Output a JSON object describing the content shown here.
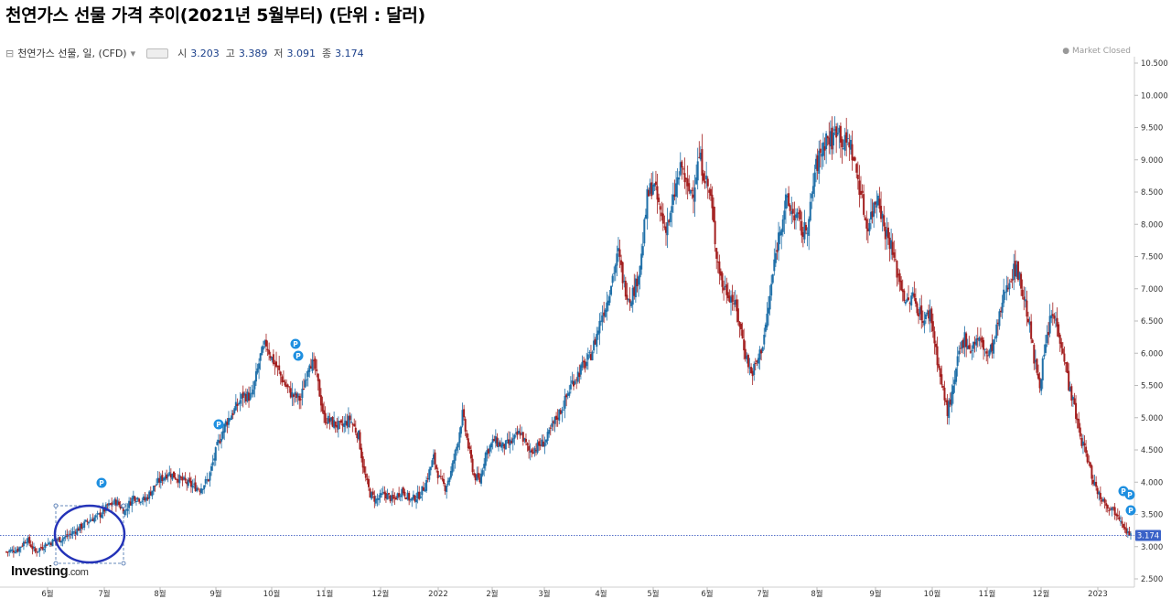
{
  "title": "천연가스 선물 가격 추이(2021년 5월부터) (단위 : 달러)",
  "legend": {
    "collapse_symbol": "⊟",
    "instrument": "천연가스 선물, 일, (CFD)",
    "caret": "▾",
    "open_label": "시",
    "open": "3.203",
    "high_label": "고",
    "high": "3.389",
    "low_label": "저",
    "low": "3.091",
    "close_label": "종",
    "close": "3.174"
  },
  "market_status": "● Market Closed",
  "logo": {
    "name": "Investing",
    "suffix": ".com"
  },
  "colors": {
    "up": "#1f6fa8",
    "down": "#a31f1f",
    "price_line": "#5570c8",
    "price_tag": "#3a62c8",
    "marker": "#1e8fe0",
    "circle": "#2433b8"
  },
  "chart_data": {
    "type": "candlestick",
    "title": "천연가스 선물 가격 추이(2021년 5월부터) (단위 : 달러)",
    "xlabel": "",
    "ylabel": "",
    "ylim": [
      2.4,
      10.6
    ],
    "yticks": [
      "10.500",
      "10.000",
      "9.500",
      "9.000",
      "8.500",
      "8.000",
      "7.500",
      "7.000",
      "6.500",
      "6.000",
      "5.500",
      "5.000",
      "4.500",
      "4.000",
      "3.500",
      "3.000",
      "2.500"
    ],
    "month_ticks": [
      "6월",
      "7월",
      "8월",
      "9월",
      "10월",
      "11월",
      "12월",
      "2022",
      "2월",
      "3월",
      "4월",
      "5월",
      "6월",
      "7월",
      "8월",
      "9월",
      "10월",
      "11월",
      "12월",
      "2023"
    ],
    "current_price": "3.174",
    "grid": false,
    "path_keypoints": [
      [
        0,
        2.92
      ],
      [
        8,
        2.96
      ],
      [
        14,
        3.12
      ],
      [
        20,
        2.92
      ],
      [
        28,
        3.05
      ],
      [
        35,
        3.1
      ],
      [
        42,
        3.16
      ],
      [
        50,
        3.28
      ],
      [
        58,
        3.42
      ],
      [
        64,
        3.48
      ],
      [
        70,
        3.62
      ],
      [
        76,
        3.7
      ],
      [
        82,
        3.55
      ],
      [
        88,
        3.78
      ],
      [
        96,
        3.72
      ],
      [
        104,
        3.98
      ],
      [
        112,
        4.15
      ],
      [
        120,
        4.05
      ],
      [
        128,
        3.95
      ],
      [
        134,
        3.9
      ],
      [
        140,
        4.05
      ],
      [
        146,
        4.55
      ],
      [
        152,
        4.92
      ],
      [
        158,
        5.12
      ],
      [
        164,
        5.35
      ],
      [
        170,
        5.32
      ],
      [
        176,
        5.95
      ],
      [
        180,
        6.15
      ],
      [
        184,
        5.92
      ],
      [
        188,
        5.75
      ],
      [
        192,
        5.55
      ],
      [
        198,
        5.35
      ],
      [
        204,
        5.28
      ],
      [
        210,
        5.9
      ],
      [
        214,
        5.75
      ],
      [
        220,
        5.0
      ],
      [
        226,
        4.92
      ],
      [
        232,
        4.85
      ],
      [
        238,
        4.98
      ],
      [
        244,
        4.72
      ],
      [
        248,
        4.12
      ],
      [
        252,
        3.82
      ],
      [
        256,
        3.72
      ],
      [
        262,
        3.82
      ],
      [
        268,
        3.72
      ],
      [
        274,
        3.88
      ],
      [
        280,
        3.72
      ],
      [
        286,
        3.8
      ],
      [
        290,
        3.95
      ],
      [
        296,
        4.38
      ],
      [
        300,
        4.05
      ],
      [
        304,
        3.92
      ],
      [
        308,
        4.15
      ],
      [
        312,
        4.55
      ],
      [
        316,
        5.05
      ],
      [
        320,
        4.55
      ],
      [
        324,
        4.1
      ],
      [
        328,
        4.02
      ],
      [
        332,
        4.45
      ],
      [
        338,
        4.65
      ],
      [
        344,
        4.55
      ],
      [
        350,
        4.62
      ],
      [
        356,
        4.78
      ],
      [
        362,
        4.48
      ],
      [
        368,
        4.55
      ],
      [
        374,
        4.65
      ],
      [
        380,
        4.95
      ],
      [
        386,
        5.2
      ],
      [
        392,
        5.55
      ],
      [
        398,
        5.75
      ],
      [
        404,
        5.92
      ],
      [
        408,
        6.2
      ],
      [
        412,
        6.55
      ],
      [
        416,
        6.8
      ],
      [
        420,
        7.2
      ],
      [
        424,
        7.55
      ],
      [
        428,
        7.05
      ],
      [
        432,
        6.85
      ],
      [
        436,
        7.05
      ],
      [
        440,
        7.5
      ],
      [
        444,
        8.4
      ],
      [
        448,
        8.65
      ],
      [
        452,
        8.28
      ],
      [
        456,
        7.95
      ],
      [
        460,
        8.1
      ],
      [
        464,
        8.6
      ],
      [
        468,
        8.9
      ],
      [
        472,
        8.5
      ],
      [
        476,
        8.55
      ],
      [
        480,
        9.05
      ],
      [
        484,
        8.75
      ],
      [
        488,
        8.4
      ],
      [
        492,
        7.55
      ],
      [
        496,
        7.05
      ],
      [
        500,
        6.95
      ],
      [
        504,
        6.8
      ],
      [
        508,
        6.45
      ],
      [
        512,
        6.0
      ],
      [
        516,
        5.68
      ],
      [
        520,
        5.85
      ],
      [
        524,
        6.15
      ],
      [
        528,
        6.7
      ],
      [
        532,
        7.4
      ],
      [
        536,
        7.95
      ],
      [
        540,
        8.35
      ],
      [
        544,
        8.2
      ],
      [
        548,
        8.1
      ],
      [
        552,
        7.85
      ],
      [
        556,
        8.05
      ],
      [
        560,
        8.8
      ],
      [
        564,
        9.1
      ],
      [
        568,
        9.35
      ],
      [
        572,
        9.3
      ],
      [
        576,
        9.55
      ],
      [
        580,
        9.22
      ],
      [
        584,
        9.3
      ],
      [
        588,
        8.9
      ],
      [
        592,
        8.5
      ],
      [
        596,
        7.95
      ],
      [
        600,
        8.2
      ],
      [
        604,
        8.5
      ],
      [
        608,
        7.95
      ],
      [
        612,
        7.75
      ],
      [
        616,
        7.35
      ],
      [
        620,
        7.05
      ],
      [
        624,
        6.75
      ],
      [
        628,
        6.88
      ],
      [
        632,
        6.68
      ],
      [
        636,
        6.5
      ],
      [
        640,
        6.65
      ],
      [
        644,
        6.05
      ],
      [
        648,
        5.5
      ],
      [
        652,
        5.1
      ],
      [
        656,
        5.42
      ],
      [
        660,
        6.0
      ],
      [
        664,
        6.25
      ],
      [
        668,
        6.05
      ],
      [
        672,
        6.22
      ],
      [
        676,
        6.15
      ],
      [
        680,
        5.95
      ],
      [
        684,
        6.15
      ],
      [
        688,
        6.55
      ],
      [
        692,
        7.0
      ],
      [
        696,
        7.2
      ],
      [
        700,
        7.35
      ],
      [
        704,
        6.95
      ],
      [
        708,
        6.55
      ],
      [
        712,
        5.9
      ],
      [
        716,
        5.55
      ],
      [
        720,
        6.1
      ],
      [
        724,
        6.6
      ],
      [
        728,
        6.45
      ],
      [
        732,
        6.05
      ],
      [
        736,
        5.52
      ],
      [
        740,
        5.15
      ],
      [
        744,
        4.7
      ],
      [
        748,
        4.45
      ],
      [
        752,
        4.1
      ],
      [
        756,
        3.85
      ],
      [
        760,
        3.72
      ],
      [
        764,
        3.62
      ],
      [
        768,
        3.55
      ],
      [
        772,
        3.45
      ],
      [
        776,
        3.25
      ],
      [
        779,
        3.17
      ]
    ]
  }
}
